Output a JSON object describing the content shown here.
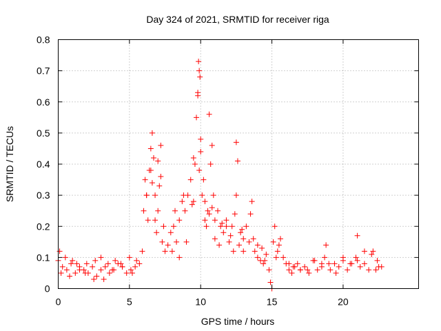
{
  "chart_data": {
    "type": "scatter",
    "title": "Day 324 of 2021, SRMTID for receiver riga",
    "xlabel": "GPS time / hours",
    "ylabel": "SRMTID / TECUs",
    "xlim": [
      0,
      25.3
    ],
    "ylim": [
      0,
      0.8
    ],
    "xticks": [
      0,
      5,
      10,
      15,
      20
    ],
    "xtick_labels": [
      "0",
      "5",
      "10",
      "15",
      "20"
    ],
    "yticks": [
      0,
      0.1,
      0.2,
      0.3,
      0.4,
      0.5,
      0.6,
      0.7,
      0.8
    ],
    "ytick_labels": [
      "0",
      "0.1",
      "0.2",
      "0.3",
      "0.4",
      "0.5",
      "0.6",
      "0.7",
      "0.8"
    ],
    "grid": true,
    "marker": "+",
    "color": "#ff0000",
    "series": [
      {
        "name": "SRMTID",
        "x": [
          0.0,
          0.3,
          0.6,
          0.9,
          1.2,
          1.5,
          1.8,
          2.1,
          2.4,
          2.7,
          3.0,
          3.3,
          3.6,
          3.9,
          4.2,
          4.5,
          4.8,
          5.1,
          5.4,
          5.7,
          5.9,
          6.0,
          6.1,
          6.2,
          6.3,
          6.4,
          6.5,
          6.6,
          6.7,
          6.8,
          6.9,
          7.0,
          7.1,
          7.2,
          7.3,
          7.5,
          7.7,
          7.9,
          8.1,
          8.3,
          8.5,
          8.7,
          8.9,
          9.1,
          9.3,
          9.5,
          9.6,
          9.7,
          9.8,
          9.85,
          9.9,
          9.95,
          10.0,
          10.1,
          10.2,
          10.3,
          10.4,
          10.5,
          10.6,
          10.7,
          10.8,
          10.9,
          11.0,
          11.2,
          11.4,
          11.6,
          11.8,
          12.0,
          12.2,
          12.4,
          12.5,
          12.6,
          12.8,
          13.0,
          13.2,
          13.4,
          13.6,
          13.8,
          14.0,
          14.2,
          14.4,
          14.6,
          14.8,
          14.9,
          15.0,
          15.1,
          15.2,
          15.4,
          15.6,
          15.8,
          16.0,
          16.2,
          16.4,
          16.6,
          16.8,
          17.0,
          17.3,
          17.6,
          17.9,
          18.2,
          18.5,
          18.7,
          18.8,
          19.1,
          19.4,
          19.7,
          20.0,
          20.3,
          20.6,
          20.9,
          21.0,
          21.2,
          21.5,
          21.8,
          22.1,
          22.4,
          22.7,
          0.1,
          0.5,
          1.0,
          1.5,
          2.0,
          2.5,
          3.0,
          3.5,
          4.0,
          4.5,
          5.0,
          5.5,
          6.5,
          6.6,
          7.0,
          7.2,
          8.0,
          8.5,
          9.0,
          9.5,
          9.8,
          9.9,
          10.3,
          10.6,
          11.0,
          11.3,
          11.8,
          12.3,
          12.5,
          12.7,
          13.0,
          13.5,
          14.0,
          14.5,
          15.3,
          16.2,
          17.0,
          18.0,
          19.0,
          20.0,
          21.0,
          22.0,
          22.5,
          0.2,
          0.8,
          1.3,
          1.9,
          2.6,
          3.2,
          3.8,
          4.4,
          5.2,
          6.2,
          6.8,
          7.4,
          8.2,
          8.8,
          9.4,
          10.0,
          10.8,
          11.5,
          12.1,
          12.9,
          13.7,
          14.3,
          15.5,
          16.5,
          17.5,
          18.5,
          19.5,
          20.5,
          21.5,
          22.3
        ],
        "y": [
          0.09,
          0.07,
          0.06,
          0.08,
          0.05,
          0.07,
          0.06,
          0.05,
          0.07,
          0.04,
          0.06,
          0.07,
          0.05,
          0.06,
          0.08,
          0.07,
          0.05,
          0.06,
          0.07,
          0.08,
          0.12,
          0.25,
          0.35,
          0.3,
          0.22,
          0.38,
          0.45,
          0.5,
          0.42,
          0.3,
          0.18,
          0.25,
          0.33,
          0.46,
          0.15,
          0.12,
          0.14,
          0.18,
          0.2,
          0.15,
          0.22,
          0.28,
          0.25,
          0.3,
          0.35,
          0.42,
          0.4,
          0.55,
          0.62,
          0.73,
          0.7,
          0.68,
          0.48,
          0.3,
          0.35,
          0.22,
          0.2,
          0.25,
          0.56,
          0.4,
          0.46,
          0.3,
          0.22,
          0.25,
          0.2,
          0.18,
          0.22,
          0.15,
          0.2,
          0.24,
          0.47,
          0.41,
          0.18,
          0.16,
          0.2,
          0.15,
          0.28,
          0.12,
          0.1,
          0.09,
          0.08,
          0.11,
          0.06,
          0.02,
          0.0,
          0.15,
          0.2,
          0.12,
          0.16,
          0.1,
          0.08,
          0.06,
          0.05,
          0.07,
          0.08,
          0.06,
          0.07,
          0.05,
          0.09,
          0.06,
          0.08,
          0.1,
          0.14,
          0.06,
          0.08,
          0.07,
          0.09,
          0.06,
          0.08,
          0.1,
          0.17,
          0.07,
          0.08,
          0.06,
          0.12,
          0.09,
          0.07,
          0.12,
          0.1,
          0.09,
          0.06,
          0.08,
          0.03,
          0.1,
          0.08,
          0.09,
          0.07,
          0.1,
          0.09,
          0.38,
          0.34,
          0.41,
          0.36,
          0.12,
          0.1,
          0.15,
          0.28,
          0.63,
          0.38,
          0.28,
          0.24,
          0.16,
          0.14,
          0.2,
          0.12,
          0.3,
          0.14,
          0.12,
          0.24,
          0.14,
          0.09,
          0.1,
          0.08,
          0.06,
          0.09,
          0.08,
          0.1,
          0.09,
          0.11,
          0.07,
          0.05,
          0.04,
          0.08,
          0.05,
          0.09,
          0.03,
          0.06,
          0.08,
          0.05,
          0.3,
          0.22,
          0.2,
          0.25,
          0.3,
          0.27,
          0.44,
          0.26,
          0.21,
          0.17,
          0.19,
          0.16,
          0.13,
          0.14,
          0.07,
          0.06,
          0.07,
          0.05,
          0.08,
          0.12,
          0.06
        ]
      }
    ]
  }
}
